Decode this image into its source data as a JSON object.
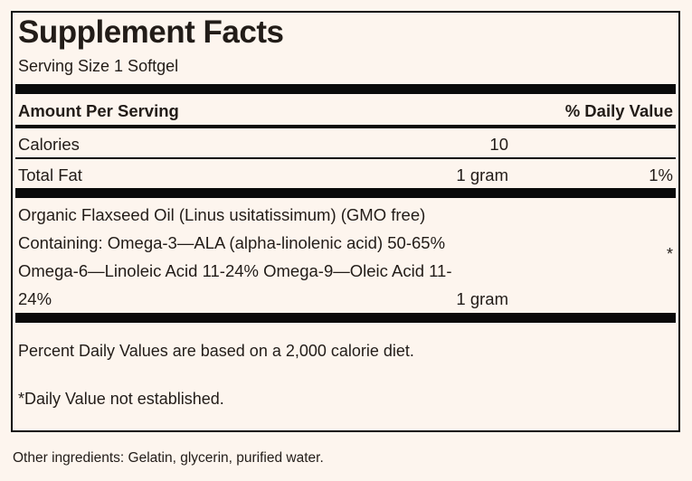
{
  "label": {
    "title": "Supplement Facts",
    "serving_size": "Serving Size 1 Softgel",
    "columns": {
      "amount_header": "Amount Per Serving",
      "dv_header": "% Daily Value"
    },
    "rows": [
      {
        "name": "Calories",
        "amount": "10",
        "dv": ""
      },
      {
        "name": "Total Fat",
        "amount": "1 gram",
        "dv": "1%"
      }
    ],
    "ingredient_block": {
      "lines": [
        "Organic Flaxseed Oil (Linus usitatissimum) (GMO free)",
        "Containing: Omega-3—ALA (alpha-linolenic acid) 50-65%",
        "Omega-6—Linoleic Acid 11-24% Omega-9—Oleic Acid 11-",
        "24%"
      ],
      "amount": "1 gram",
      "dv_mark": "*"
    },
    "footnotes": [
      "Percent Daily Values are based on a 2,000 calorie diet.",
      "*Daily Value not established."
    ],
    "other_ingredients": "Other ingredients: Gelatin, glycerin, purified water."
  },
  "colors": {
    "background": "#fdf5ee",
    "text": "#221c18",
    "rule": "#0a0a0a"
  }
}
